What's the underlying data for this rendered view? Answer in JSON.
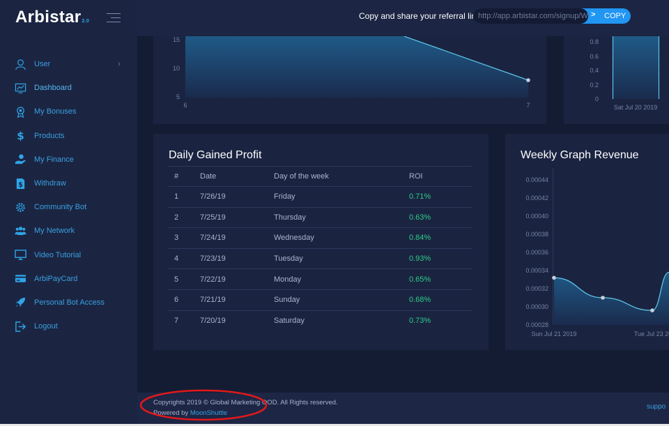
{
  "app": {
    "logo": "Arbistar",
    "logo_version": "2.0"
  },
  "sidebar": {
    "items": [
      {
        "label": "User",
        "icon": "user-icon",
        "has_submenu": true
      },
      {
        "label": "Dashboard",
        "icon": "dashboard-icon",
        "active": true
      },
      {
        "label": "My Bonuses",
        "icon": "medal-icon"
      },
      {
        "label": "Products",
        "icon": "dollar-icon"
      },
      {
        "label": "My Finance",
        "icon": "hand-coin-icon"
      },
      {
        "label": "Withdraw",
        "icon": "document-dollar-icon"
      },
      {
        "label": "Community Bot",
        "icon": "gear-icon"
      },
      {
        "label": "My Network",
        "icon": "users-icon"
      },
      {
        "label": "Video Tutorial",
        "icon": "monitor-icon"
      },
      {
        "label": "ArbiPayCard",
        "icon": "credit-card-icon"
      },
      {
        "label": "Personal Bot Access",
        "icon": "rocket-icon"
      },
      {
        "label": "Logout",
        "icon": "logout-icon"
      }
    ]
  },
  "topbar": {
    "referral_text": "Copy and share your referral link",
    "referral_value": "http://app.arbistar.com/signup/W",
    "copy_label": "COPY",
    "arrow": ">"
  },
  "top_left_chart": {
    "chart_data": {
      "type": "area",
      "x": [
        6,
        7
      ],
      "y_ticks": [
        "15",
        "10",
        "5"
      ],
      "x_ticks": [
        "6",
        "7"
      ],
      "note_visible": "partial view, upper part cut off"
    }
  },
  "top_right_chart": {
    "chart_data": {
      "type": "bar",
      "y_ticks": [
        "0.8",
        "0.6",
        "0.4",
        "0.2",
        "0"
      ],
      "x_ticks": [
        "Sat Jul 20 2019"
      ]
    }
  },
  "profit_table": {
    "title": "Daily Gained Profit",
    "headers": [
      "#",
      "Date",
      "Day of the week",
      "ROI"
    ],
    "rows": [
      [
        "1",
        "7/26/19",
        "Friday",
        "0.71%"
      ],
      [
        "2",
        "7/25/19",
        "Thursday",
        "0.63%"
      ],
      [
        "3",
        "7/24/19",
        "Wednesday",
        "0.84%"
      ],
      [
        "4",
        "7/23/19",
        "Tuesday",
        "0.93%"
      ],
      [
        "5",
        "7/22/19",
        "Monday",
        "0.65%"
      ],
      [
        "6",
        "7/21/19",
        "Sunday",
        "0.68%"
      ],
      [
        "7",
        "7/20/19",
        "Saturday",
        "0.73%"
      ]
    ]
  },
  "weekly_chart": {
    "title": "Weekly Graph Revenue",
    "chart_data": {
      "type": "area",
      "ylim": [
        0.00028,
        0.00044
      ],
      "y_ticks": [
        "0.00044",
        "0.00042",
        "0.00040",
        "0.00038",
        "0.00036",
        "0.00034",
        "0.00032",
        "0.00030",
        "0.00028"
      ],
      "x_ticks": [
        "Sun Jul 21 2019",
        "Tue Jul 23 20"
      ],
      "points": [
        {
          "x": "Sun Jul 21 2019",
          "y": 0.000332
        },
        {
          "x": "Mon Jul 22 2019",
          "y": 0.00031
        },
        {
          "x": "Tue Jul 23 2019",
          "y": 0.000296
        }
      ]
    }
  },
  "footer": {
    "copyright": "Copyrights 2019 © Global Marketing OOD. All Rights reserved.",
    "powered_prefix": "Powered by ",
    "powered_link": "MoonShuttle",
    "support": "suppo"
  },
  "colors": {
    "accent": "#2196f3",
    "link": "#3aa0e0",
    "roi": "#2ecc87",
    "annotation": "#e0191b"
  }
}
